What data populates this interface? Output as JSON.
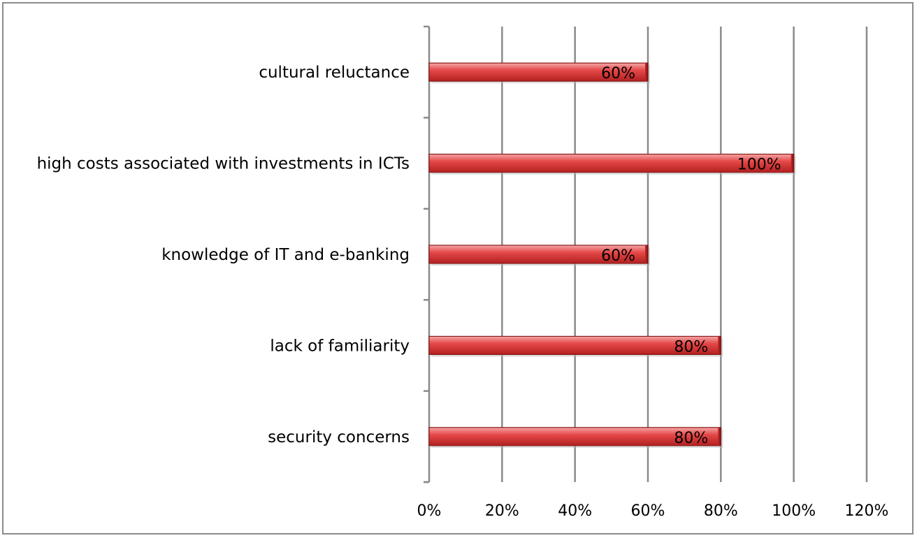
{
  "chart_data": {
    "type": "bar",
    "orientation": "horizontal",
    "categories": [
      "cultural reluctance",
      "high costs associated with investments in ICTs",
      "knowledge of IT and e-banking",
      "lack of familiarity",
      "security concerns"
    ],
    "values": [
      60,
      100,
      60,
      80,
      80
    ],
    "data_labels": [
      "60%",
      "100%",
      "60%",
      "80%",
      "80%"
    ],
    "x_ticks": [
      "0%",
      "20%",
      "40%",
      "60%",
      "80%",
      "100%",
      "120%"
    ],
    "xlim": [
      0,
      120
    ],
    "title": "",
    "xlabel": "",
    "ylabel": "",
    "grid": "vertical",
    "legend": "none",
    "bar_color": "#e84a4a",
    "bar_edge_color": "#8b1a1a"
  }
}
